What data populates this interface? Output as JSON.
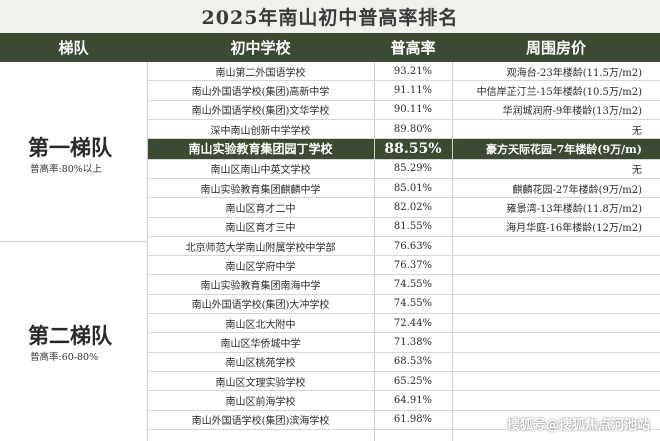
{
  "title": "2025年南山初中普高率排名",
  "headers": {
    "tier": "梯队",
    "school": "初中学校",
    "rate": "普高率",
    "housing": "周围房价"
  },
  "tiers": [
    {
      "name": "第一梯队",
      "rate": "普高率:80%以上"
    },
    {
      "name": "第二梯队",
      "rate": "普高率:60-80%"
    }
  ],
  "rows": [
    {
      "school": "南山第二外国语学校",
      "rate": "93.21%",
      "housing": "观海台-23年楼龄(11.5万/m2)"
    },
    {
      "school": "南山外国语学校(集团)高新中学",
      "rate": "91.11%",
      "housing": "中信岸芷汀兰-15年楼龄(10.5万/m2)"
    },
    {
      "school": "南山外国语学校(集团)文华学校",
      "rate": "90.11%",
      "housing": "华润城润府-9年楼龄(13万/m2)"
    },
    {
      "school": "深中南山创新中学学校",
      "rate": "89.80%",
      "housing": "无"
    },
    {
      "school": "南山实验教育集团园丁学校",
      "rate": "88.55%",
      "housing": "豪方天际花园-7年楼龄(9万/m)"
    },
    {
      "school": "南山区南山中英文学校",
      "rate": "85.29%",
      "housing": "无"
    },
    {
      "school": "南山实验教育集团麒麟中学",
      "rate": "85.01%",
      "housing": "麒麟花园-27年楼龄(9万/m2)"
    },
    {
      "school": "南山区育才二中",
      "rate": "82.02%",
      "housing": "雍景湾-13年楼龄(11.8万/m2)"
    },
    {
      "school": "南山区育才三中",
      "rate": "81.55%",
      "housing": "海月华庭-16年楼龄(12万/m2)"
    },
    {
      "school": "北京师范大学南山附属学校中学部",
      "rate": "76.63%",
      "housing": ""
    },
    {
      "school": "南山区学府中学",
      "rate": "76.37%",
      "housing": ""
    },
    {
      "school": "南山实验教育集团南海中学",
      "rate": "74.55%",
      "housing": ""
    },
    {
      "school": "南山外国语学校(集团)大冲学校",
      "rate": "74.55%",
      "housing": ""
    },
    {
      "school": "南山区北大附中",
      "rate": "72.44%",
      "housing": ""
    },
    {
      "school": "南山区华侨城中学",
      "rate": "71.38%",
      "housing": ""
    },
    {
      "school": "南山区桃苑学校",
      "rate": "68.53%",
      "housing": ""
    },
    {
      "school": "南山区文理实验学校",
      "rate": "65.25%",
      "housing": ""
    },
    {
      "school": "南山区前海学校",
      "rate": "64.91%",
      "housing": ""
    },
    {
      "school": "南山外国语学校(集团)滨海学校",
      "rate": "61.98%",
      "housing": ""
    }
  ],
  "watermark": "搜狐号@搜狐焦点河池站"
}
